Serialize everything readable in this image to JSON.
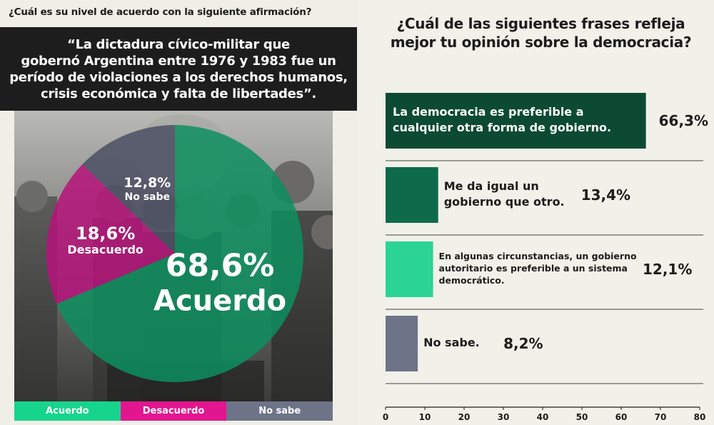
{
  "left": {
    "question": "¿Cuál es su nivel de acuerdo con la siguiente afirmación?",
    "quote_lines": [
      "“La dictadura cívico-militar que",
      "gobernó Argentina entre 1976 y 1983 fue un",
      "período de violaciones a los derechos humanos,",
      "crisis económica y falta de libertades”."
    ],
    "legend": [
      {
        "label": "Acuerdo",
        "color": "#17d48c"
      },
      {
        "label": "Desacuerdo",
        "color": "#e2168f"
      },
      {
        "label": "No sabe",
        "color": "#6e7488"
      }
    ]
  },
  "right": {
    "title_lines": [
      "¿Cuál de las siguientes frases refleja",
      "mejor tu opinión sobre la democracia?"
    ]
  },
  "chart_data": [
    {
      "type": "pie",
      "slices": [
        {
          "label": "Acuerdo",
          "value": 68.6,
          "value_text": "68,6%",
          "color": "#0d8f5e"
        },
        {
          "label": "Desacuerdo",
          "value": 18.6,
          "value_text": "18,6%",
          "color": "#b5137a"
        },
        {
          "label": "No sabe",
          "value": 12.8,
          "value_text": "12,8%",
          "color": "#4a4f63"
        }
      ]
    },
    {
      "type": "bar",
      "orientation": "horizontal",
      "categories": [
        [
          "La democracia es preferible a",
          "cualquier otra forma de gobierno."
        ],
        [
          "Me da igual un",
          "gobierno que otro."
        ],
        [
          "En algunas circunstancias, un gobierno",
          "autoritario es preferible a un sistema",
          "democrático."
        ],
        [
          "No sabe."
        ]
      ],
      "values": [
        66.3,
        13.4,
        12.1,
        8.2
      ],
      "value_labels": [
        "66,3%",
        "13,4%",
        "12,1%",
        "8,2%"
      ],
      "colors": [
        "#0c4a33",
        "#0d6a4a",
        "#2bd494",
        "#6e7488"
      ],
      "xlim": [
        0,
        80
      ],
      "xticks": [
        0,
        10,
        20,
        30,
        40,
        50,
        60,
        70,
        80
      ],
      "grid": false
    }
  ]
}
